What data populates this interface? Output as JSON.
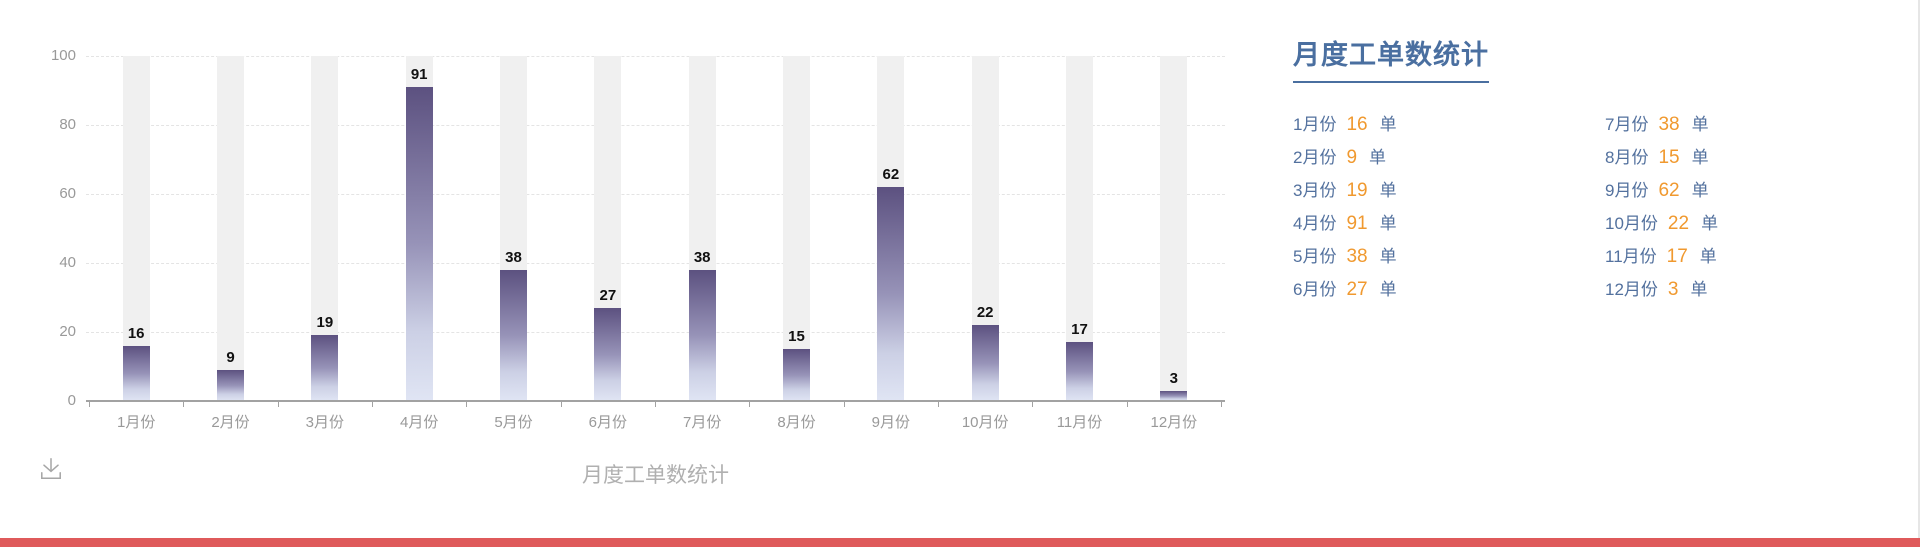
{
  "chart_data": {
    "type": "bar",
    "title": "月度工单数统计",
    "categories": [
      "1月份",
      "2月份",
      "3月份",
      "4月份",
      "5月份",
      "6月份",
      "7月份",
      "8月份",
      "9月份",
      "10月份",
      "11月份",
      "12月份"
    ],
    "values": [
      16,
      9,
      19,
      91,
      38,
      27,
      38,
      15,
      62,
      22,
      17,
      3
    ],
    "xlabel": "",
    "ylabel": "",
    "ylim": [
      0,
      100
    ],
    "yticks": [
      0,
      20,
      40,
      60,
      80,
      100
    ],
    "grid": "dashed-horizontal",
    "legend": "none",
    "value_labels": true,
    "background_bands": true
  },
  "chart": {
    "bottom_title": "月度工单数统计"
  },
  "icons": {
    "download": "download-icon"
  },
  "summary": {
    "title": "月度工单数统计",
    "unit": "单",
    "items": [
      {
        "month": "1月份",
        "value": 16
      },
      {
        "month": "2月份",
        "value": 9
      },
      {
        "month": "3月份",
        "value": 19
      },
      {
        "month": "4月份",
        "value": 91
      },
      {
        "month": "5月份",
        "value": 38
      },
      {
        "month": "6月份",
        "value": 27
      },
      {
        "month": "7月份",
        "value": 38
      },
      {
        "month": "8月份",
        "value": 15
      },
      {
        "month": "9月份",
        "value": 62
      },
      {
        "month": "10月份",
        "value": 22
      },
      {
        "month": "11月份",
        "value": 17
      },
      {
        "month": "12月份",
        "value": 3
      }
    ]
  },
  "colors": {
    "bar_gradient_top": "#5c5180",
    "bar_gradient_mid": "#9793b8",
    "bar_gradient_bottom": "#e0e5f4",
    "background_band": "#f0f0f0",
    "gridline": "#e4e4e4",
    "axis": "#a2a2a2",
    "tick_label": "#999999",
    "value_label": "#111111",
    "chart_bottom_title": "#b0b0b0",
    "summary_title": "#4a6fa0",
    "summary_label": "#53719e",
    "summary_value": "#f0992f",
    "bottom_strip": "#df5a5b"
  }
}
